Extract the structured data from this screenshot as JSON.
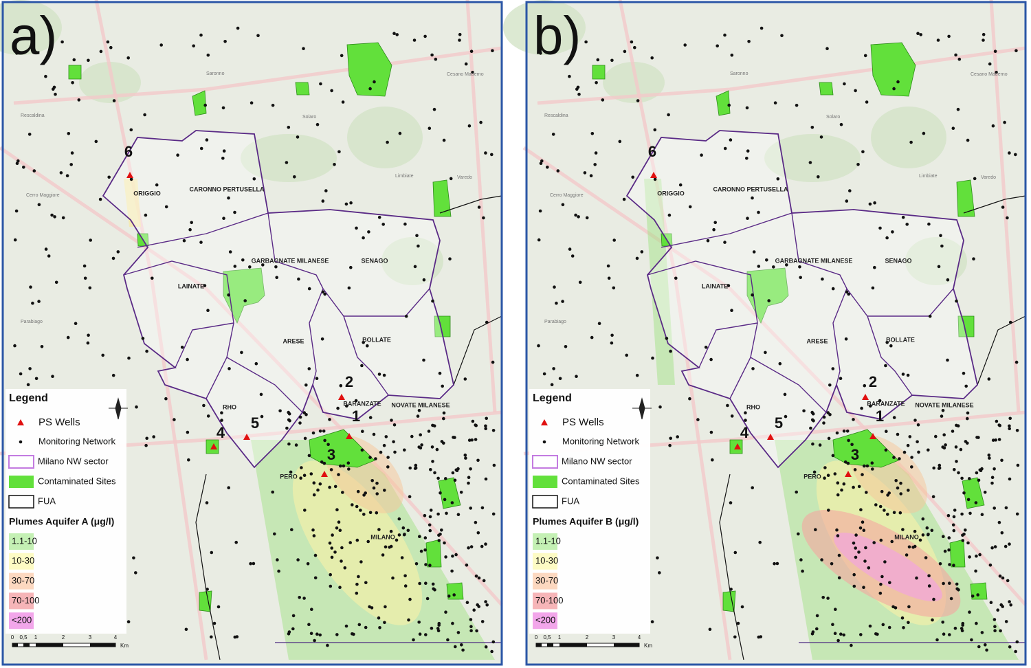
{
  "panels": [
    {
      "label": "a)",
      "municipalities": [
        "ORIGGIO",
        "CARONNO PERTUSELLA",
        "GARBAGNATE MILANESE",
        "SENAGO",
        "LAINATE",
        "ARESE",
        "BOLLATE",
        "RHO",
        "BARANZATE",
        "NOVATE MILANESE",
        "PERO",
        "MILANO"
      ],
      "wells": [
        "1",
        "2",
        "3",
        "4",
        "5",
        "6"
      ],
      "legend": {
        "title": "Legend",
        "items": [
          "PS Wells",
          "Monitoring Network",
          "Milano NW sector",
          "Contaminated Sites",
          "FUA"
        ],
        "plumes_title": "Plumes Aquifer A (μg/l)",
        "plume_classes": [
          "1.1-10",
          "10-30",
          "30-70",
          "70-100",
          "<200"
        ]
      },
      "scale": {
        "ticks": [
          "0",
          "0,5",
          "1",
          "2",
          "3",
          "4"
        ],
        "unit": "Km"
      }
    },
    {
      "label": "b)",
      "municipalities": [
        "ORIGGIO",
        "CARONNO PERTUSELLA",
        "GARBAGNATE MILANESE",
        "SENAGO",
        "LAINATE",
        "ARESE",
        "BOLLATE",
        "RHO",
        "BARANZATE",
        "NOVATE MILANESE",
        "PERO",
        "MILANO"
      ],
      "wells": [
        "1",
        "2",
        "3",
        "4",
        "5",
        "6"
      ],
      "legend": {
        "title": "Legend",
        "items": [
          "PS Wells",
          "Monitoring Network",
          "Milano NW sector",
          "Contaminated Sites",
          "FUA"
        ],
        "plumes_title": "Plumes Aquifer B (μg/l)",
        "plume_classes": [
          "1.1-10",
          "10-30",
          "30-70",
          "70-100",
          "<200"
        ]
      },
      "scale": {
        "ticks": [
          "0",
          "0,5",
          "1",
          "2",
          "3",
          "4"
        ],
        "unit": "Km"
      }
    }
  ],
  "place_names": [
    "Saronno",
    "Rescaldina",
    "Cerro Maggiore",
    "Limbiate",
    "Parabiago",
    "Solaro",
    "Varedo",
    "Cesano Maderno"
  ]
}
